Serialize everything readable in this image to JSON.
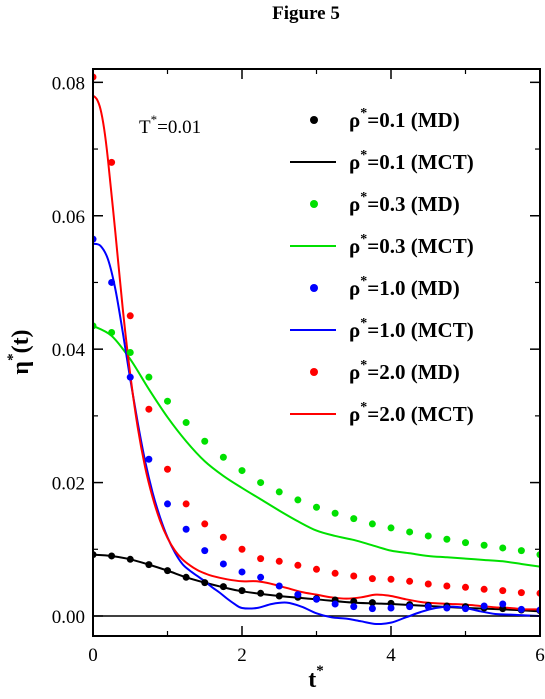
{
  "chart_data": {
    "type": "line",
    "title": "Figure 5",
    "xlabel": {
      "main": "t",
      "sup": "*"
    },
    "ylabel": {
      "main": "η",
      "sup": "*",
      "suffix": "(t)"
    },
    "xlim": [
      0,
      6
    ],
    "ylim": [
      -0.003,
      0.082
    ],
    "xticks": [
      0,
      2,
      4,
      6
    ],
    "xtick_labels": [
      "0",
      "2",
      "4",
      "6"
    ],
    "yticks": [
      0.0,
      0.02,
      0.04,
      0.06,
      0.08
    ],
    "ytick_labels": [
      "0.00",
      "0.02",
      "0.04",
      "0.06",
      "0.08"
    ],
    "annotation": {
      "main": "T",
      "sup": "*",
      "suffix": "=0.01"
    },
    "legend_position": "top-right",
    "zero_line": true,
    "series": [
      {
        "name": {
          "main": "ρ",
          "sup": "*",
          "suffix": "=0.1 (MD)"
        },
        "kind": "points",
        "color": "#000000",
        "x": [
          0.0,
          0.25,
          0.5,
          0.75,
          1.0,
          1.25,
          1.5,
          1.75,
          2.0,
          2.25,
          2.5,
          2.75,
          3.0,
          3.25,
          3.5,
          3.75,
          4.0,
          4.25,
          4.5,
          4.75,
          5.0,
          5.25,
          5.5,
          5.75,
          6.0
        ],
        "y": [
          0.0092,
          0.009,
          0.0085,
          0.0077,
          0.0068,
          0.0058,
          0.005,
          0.0044,
          0.0038,
          0.0034,
          0.003,
          0.0028,
          0.0026,
          0.0024,
          0.0022,
          0.002,
          0.0019,
          0.0017,
          0.0016,
          0.0015,
          0.0014,
          0.0012,
          0.0011,
          0.0009,
          0.0008
        ]
      },
      {
        "name": {
          "main": "ρ",
          "sup": "*",
          "suffix": "=0.1 (MCT)"
        },
        "kind": "line",
        "color": "#000000",
        "x": [
          0.0,
          0.25,
          0.5,
          0.75,
          1.0,
          1.25,
          1.5,
          1.75,
          2.0,
          2.5,
          3.0,
          3.5,
          4.0,
          4.5,
          5.0,
          5.5,
          6.0
        ],
        "y": [
          0.0092,
          0.009,
          0.0085,
          0.0077,
          0.0068,
          0.0058,
          0.005,
          0.0043,
          0.0037,
          0.003,
          0.0025,
          0.002,
          0.0018,
          0.0015,
          0.0012,
          0.001,
          0.0007
        ]
      },
      {
        "name": {
          "main": "ρ",
          "sup": "*",
          "suffix": "=0.3 (MD)"
        },
        "kind": "points",
        "color": "#00e000",
        "x": [
          0.0,
          0.25,
          0.5,
          0.75,
          1.0,
          1.25,
          1.5,
          1.75,
          2.0,
          2.25,
          2.5,
          2.75,
          3.0,
          3.25,
          3.5,
          3.75,
          4.0,
          4.25,
          4.5,
          4.75,
          5.0,
          5.25,
          5.5,
          5.75,
          6.0
        ],
        "y": [
          0.0435,
          0.0425,
          0.0395,
          0.0358,
          0.0322,
          0.029,
          0.0262,
          0.0238,
          0.0218,
          0.02,
          0.0186,
          0.0174,
          0.0163,
          0.0154,
          0.0146,
          0.0138,
          0.0132,
          0.0126,
          0.012,
          0.0115,
          0.011,
          0.0106,
          0.0102,
          0.0098,
          0.0092
        ]
      },
      {
        "name": {
          "main": "ρ",
          "sup": "*",
          "suffix": "=0.3 (MCT)"
        },
        "kind": "line",
        "color": "#00e000",
        "x": [
          0.0,
          0.25,
          0.5,
          0.75,
          1.0,
          1.25,
          1.5,
          1.75,
          2.0,
          2.25,
          2.5,
          2.75,
          3.0,
          3.25,
          3.5,
          3.75,
          4.0,
          4.25,
          4.5,
          4.75,
          5.0,
          5.25,
          5.5,
          5.75,
          6.0
        ],
        "y": [
          0.0435,
          0.042,
          0.0385,
          0.034,
          0.0298,
          0.0262,
          0.0232,
          0.021,
          0.0192,
          0.0175,
          0.0158,
          0.0142,
          0.0128,
          0.012,
          0.0114,
          0.0106,
          0.0098,
          0.0094,
          0.009,
          0.0088,
          0.0086,
          0.0084,
          0.0082,
          0.0078,
          0.0074
        ]
      },
      {
        "name": {
          "main": "ρ",
          "sup": "*",
          "suffix": "=1.0 (MD)"
        },
        "kind": "points",
        "color": "#0000ff",
        "x": [
          0.0,
          0.25,
          0.5,
          0.75,
          1.0,
          1.25,
          1.5,
          1.75,
          2.0,
          2.25,
          2.5,
          2.75,
          3.0,
          3.25,
          3.5,
          3.75,
          4.0,
          4.25,
          4.5,
          4.75,
          5.0,
          5.25,
          5.5,
          5.75,
          6.0
        ],
        "y": [
          0.0565,
          0.05,
          0.0358,
          0.0235,
          0.0168,
          0.013,
          0.0098,
          0.0078,
          0.0066,
          0.0058,
          0.0045,
          0.0032,
          0.0025,
          0.0018,
          0.0014,
          0.0011,
          0.0012,
          0.0014,
          0.0014,
          0.0012,
          0.0011,
          0.0015,
          0.0018,
          0.001,
          0.0009
        ]
      },
      {
        "name": {
          "main": "ρ",
          "sup": "*",
          "suffix": "=1.0 (MCT)"
        },
        "kind": "line",
        "color": "#0000ff",
        "x": [
          0.0,
          0.1,
          0.2,
          0.3,
          0.4,
          0.5,
          0.6,
          0.7,
          0.8,
          0.9,
          1.0,
          1.1,
          1.2,
          1.3,
          1.4,
          1.5,
          1.6,
          1.7,
          1.8,
          1.9,
          2.0,
          2.2,
          2.4,
          2.6,
          2.8,
          3.0,
          3.2,
          3.4,
          3.6,
          3.8,
          4.0,
          4.2,
          4.4,
          4.6,
          4.8,
          5.0,
          5.2,
          5.4,
          5.6,
          5.8,
          6.0
        ],
        "y": [
          0.0558,
          0.0555,
          0.0535,
          0.049,
          0.0425,
          0.0355,
          0.029,
          0.0232,
          0.0185,
          0.0148,
          0.0118,
          0.0095,
          0.0078,
          0.0068,
          0.006,
          0.0052,
          0.0043,
          0.0035,
          0.0026,
          0.0018,
          0.0012,
          0.0012,
          0.0018,
          0.002,
          0.0014,
          0.0004,
          -0.0002,
          -0.0004,
          -0.0008,
          -0.0012,
          -0.001,
          -0.0002,
          0.0006,
          0.0012,
          0.0014,
          0.0012,
          0.0007,
          0.0003,
          0.0002,
          0.0001,
          0.0
        ]
      },
      {
        "name": {
          "main": "ρ",
          "sup": "*",
          "suffix": "=2.0 (MD)"
        },
        "kind": "points",
        "color": "#ff0000",
        "x": [
          0.0,
          0.25,
          0.5,
          0.75,
          1.0,
          1.25,
          1.5,
          1.75,
          2.0,
          2.25,
          2.5,
          2.75,
          3.0,
          3.25,
          3.5,
          3.75,
          4.0,
          4.25,
          4.5,
          4.75,
          5.0,
          5.25,
          5.5,
          5.75,
          6.0
        ],
        "y": [
          0.0808,
          0.068,
          0.045,
          0.031,
          0.022,
          0.0168,
          0.0138,
          0.0118,
          0.01,
          0.0086,
          0.0082,
          0.0076,
          0.007,
          0.0064,
          0.006,
          0.0056,
          0.0055,
          0.0052,
          0.0048,
          0.0045,
          0.0043,
          0.004,
          0.0038,
          0.0035,
          0.0034
        ]
      },
      {
        "name": {
          "main": "ρ",
          "sup": "*",
          "suffix": "=2.0 (MCT)"
        },
        "kind": "line",
        "color": "#ff0000",
        "x": [
          0.0,
          0.05,
          0.1,
          0.15,
          0.2,
          0.3,
          0.4,
          0.5,
          0.6,
          0.7,
          0.8,
          0.9,
          1.0,
          1.1,
          1.2,
          1.3,
          1.4,
          1.5,
          1.6,
          1.8,
          2.0,
          2.2,
          2.4,
          2.6,
          2.8,
          3.0,
          3.2,
          3.4,
          3.6,
          3.8,
          4.0,
          4.2,
          4.4,
          4.6,
          4.8,
          5.0,
          5.2,
          5.4,
          5.6,
          5.8,
          6.0
        ],
        "y": [
          0.078,
          0.0775,
          0.076,
          0.073,
          0.0685,
          0.0575,
          0.046,
          0.0362,
          0.0283,
          0.0223,
          0.0178,
          0.0143,
          0.0117,
          0.0098,
          0.0085,
          0.0076,
          0.0069,
          0.0064,
          0.006,
          0.0055,
          0.0052,
          0.0052,
          0.0048,
          0.0042,
          0.0036,
          0.0032,
          0.0028,
          0.0026,
          0.0028,
          0.0032,
          0.003,
          0.0025,
          0.0021,
          0.0019,
          0.0018,
          0.0017,
          0.0015,
          0.0013,
          0.0012,
          0.001,
          0.001
        ]
      }
    ]
  }
}
